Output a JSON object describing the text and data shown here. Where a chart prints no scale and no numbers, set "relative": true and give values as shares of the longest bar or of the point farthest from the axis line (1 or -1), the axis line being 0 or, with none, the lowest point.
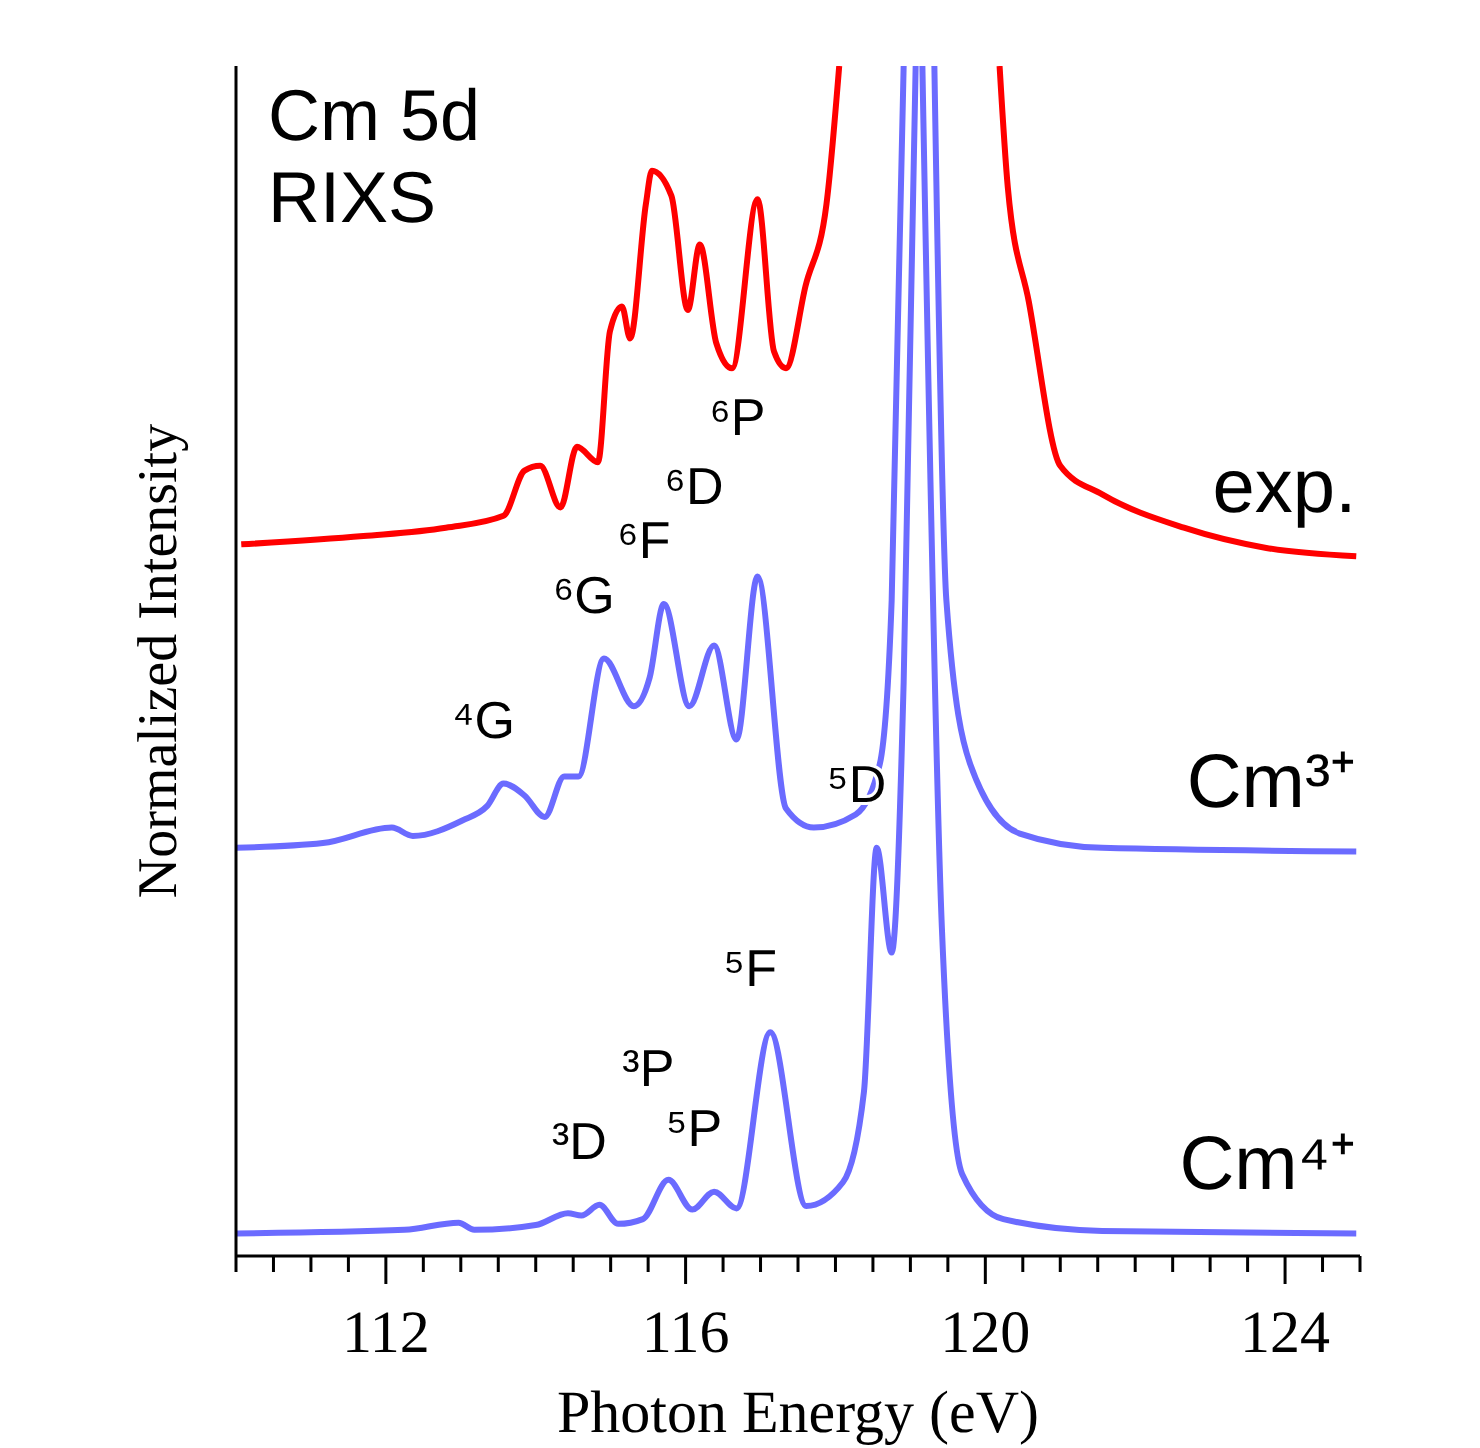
{
  "chart_data": {
    "type": "line",
    "title": "Cm 5d RIXS",
    "xlabel": "Photon Energy (eV)",
    "ylabel": "Normalized Intensity",
    "relative": true,
    "xlim": [
      110,
      125
    ],
    "xticks": [
      {
        "value": 110,
        "label": null
      },
      {
        "value": 110.5,
        "label": null
      },
      {
        "value": 111,
        "label": null
      },
      {
        "value": 111.5,
        "label": null
      },
      112,
      {
        "value": 112.5,
        "label": null
      },
      {
        "value": 113,
        "label": null
      },
      {
        "value": 113.5,
        "label": null
      },
      {
        "value": 114,
        "label": null
      },
      {
        "value": 114.5,
        "label": null
      },
      {
        "value": 115,
        "label": null
      },
      {
        "value": 115.5,
        "label": null
      },
      116,
      {
        "value": 116.5,
        "label": null
      },
      {
        "value": 117,
        "label": null
      },
      {
        "value": 117.5,
        "label": null
      },
      {
        "value": 118,
        "label": null
      },
      {
        "value": 118.5,
        "label": null
      },
      {
        "value": 119,
        "label": null
      },
      {
        "value": 119.5,
        "label": null
      },
      120,
      {
        "value": 120.5,
        "label": null
      },
      {
        "value": 121,
        "label": null
      },
      {
        "value": 121.5,
        "label": null
      },
      {
        "value": 122,
        "label": null
      },
      {
        "value": 122.5,
        "label": null
      },
      {
        "value": 123,
        "label": null
      },
      {
        "value": 123.5,
        "label": null
      },
      124,
      {
        "value": 124.5,
        "label": null
      },
      {
        "value": 125,
        "label": null
      }
    ],
    "series": [
      {
        "name": "exp.",
        "color": "#ff0000",
        "x": [
          110.07,
          111.7,
          112.8,
          113.57,
          113.85,
          114.06,
          114.33,
          114.55,
          114.83,
          114.99,
          115.15,
          115.26,
          115.47,
          115.55,
          115.81,
          116.03,
          116.19,
          116.41,
          116.62,
          116.96,
          117.18,
          117.34,
          117.6,
          117.88,
          118.05,
          119.1,
          120.19,
          120.3,
          120.58,
          121.0,
          121.56,
          122.65,
          123.75,
          124.95
        ],
        "values": [
          0.598,
          0.605,
          0.612,
          0.622,
          0.66,
          0.664,
          0.629,
          0.68,
          0.667,
          0.777,
          0.798,
          0.771,
          0.884,
          0.912,
          0.891,
          0.795,
          0.85,
          0.767,
          0.746,
          0.888,
          0.76,
          0.746,
          0.815,
          0.884,
          1,
          null,
          1,
          0.898,
          0.802,
          0.664,
          0.64,
          0.612,
          0.595,
          0.588
        ]
      },
      {
        "name": "Cm³⁺",
        "color": "#6b6bff",
        "x": [
          110.0,
          111.16,
          112.08,
          112.36,
          113.02,
          113.35,
          113.57,
          113.85,
          114.12,
          114.38,
          114.57,
          114.91,
          115.31,
          115.52,
          115.71,
          116.05,
          116.38,
          116.68,
          116.96,
          117.34,
          117.71,
          118.27,
          118.59,
          118.75,
          118.91,
          119.1,
          119.32,
          119.48,
          119.8,
          120.46,
          121.56,
          124.95
        ],
        "values": [
          0.343,
          0.347,
          0.36,
          0.353,
          0.366,
          0.378,
          0.397,
          0.387,
          0.369,
          0.403,
          0.403,
          0.502,
          0.462,
          0.486,
          0.548,
          0.462,
          0.513,
          0.434,
          0.571,
          0.376,
          0.36,
          0.371,
          0.413,
          0.551,
          1,
          null,
          1,
          0.551,
          0.413,
          0.355,
          0.343,
          0.34
        ]
      },
      {
        "name": "Cm⁴⁺",
        "color": "#6b6bff",
        "x": [
          110.0,
          112.25,
          112.97,
          113.18,
          114.0,
          114.43,
          114.61,
          114.85,
          115.1,
          115.43,
          115.77,
          116.09,
          116.38,
          116.68,
          117.13,
          117.61,
          118.1,
          118.38,
          118.55,
          118.75,
          118.91,
          119.07,
          119.12,
          119.16,
          119.42,
          119.69,
          120.24,
          121.56,
          124.95
        ],
        "values": [
          0.019,
          0.022,
          0.028,
          0.022,
          0.026,
          0.036,
          0.034,
          0.043,
          0.027,
          0.031,
          0.064,
          0.039,
          0.054,
          0.04,
          0.188,
          0.042,
          0.062,
          0.138,
          0.343,
          0.255,
          0.482,
          1,
          null,
          1,
          0.276,
          0.069,
          0.031,
          0.021,
          0.019
        ]
      }
    ],
    "annotations": [
      {
        "text": "⁴G",
        "x": 113.57,
        "y": 0.397
      },
      {
        "text": "⁶G",
        "x": 114.91,
        "y": 0.502
      },
      {
        "text": "⁶F",
        "x": 115.71,
        "y": 0.548
      },
      {
        "text": "⁶D",
        "x": 116.38,
        "y": 0.513
      },
      {
        "text": "⁶P",
        "x": 116.96,
        "y": 0.571
      },
      {
        "text": "⁵D",
        "x": 118.55,
        "y": 0.343
      },
      {
        "text": "⁵F",
        "x": 117.13,
        "y": 0.188
      },
      {
        "text": "⁵P",
        "x": 116.38,
        "y": 0.054
      },
      {
        "text": "³P",
        "x": 115.77,
        "y": 0.064
      },
      {
        "text": "³D",
        "x": 114.85,
        "y": 0.043
      }
    ]
  }
}
